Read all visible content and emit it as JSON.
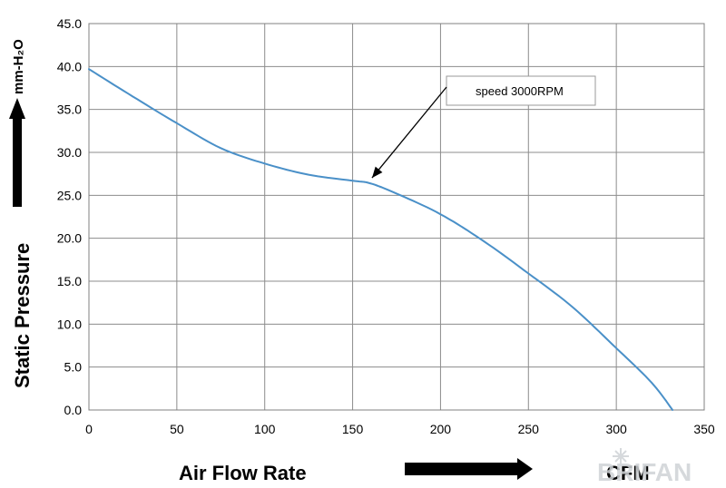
{
  "chart_data": {
    "type": "line",
    "xlabel": "Air   Flow   Rate",
    "xunit": "CFM",
    "ylabel": "Static   Pressure",
    "yunit": "mm-H₂O",
    "xlim": [
      0,
      350
    ],
    "ylim": [
      0,
      45
    ],
    "x_ticks": [
      "0",
      "50",
      "100",
      "150",
      "200",
      "250",
      "300",
      "350"
    ],
    "y_ticks": [
      "0.0",
      "5.0",
      "10.0",
      "15.0",
      "20.0",
      "25.0",
      "30.0",
      "35.0",
      "40.0",
      "45.0"
    ],
    "grid": true,
    "series": [
      {
        "color": "#4a90c8",
        "x": [
          0,
          25,
          50,
          75,
          100,
          125,
          150,
          160,
          175,
          200,
          225,
          250,
          275,
          300,
          320,
          332
        ],
        "y": [
          39.7,
          36.5,
          33.4,
          30.5,
          28.7,
          27.4,
          26.7,
          26.4,
          25.2,
          22.8,
          19.6,
          15.9,
          12.0,
          7.2,
          3.2,
          0.0
        ]
      }
    ],
    "annotations": [
      {
        "text": "speed  3000RPM",
        "x": 160,
        "y": 26.4
      }
    ],
    "watermark": "BRIFAN"
  }
}
